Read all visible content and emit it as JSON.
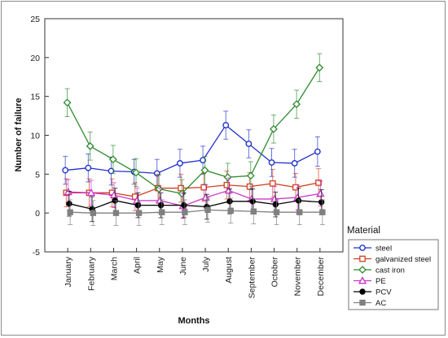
{
  "chart_data": {
    "type": "line",
    "xlabel": "Months",
    "ylabel": "Number of failure",
    "ylim": [
      -5,
      25
    ],
    "yticks": [
      -5,
      0,
      5,
      10,
      15,
      20,
      25
    ],
    "categories": [
      "January",
      "February",
      "March",
      "April",
      "May",
      "June",
      "July",
      "August",
      "September",
      "October",
      "November",
      "December"
    ],
    "grid": false,
    "error_bars": true,
    "legend": {
      "title": "Material",
      "placement": "right"
    },
    "series": [
      {
        "name": "steel",
        "color": "#2233cc",
        "marker": "circle",
        "values": [
          5.5,
          5.8,
          5.4,
          5.3,
          5.1,
          6.4,
          6.8,
          11.3,
          8.9,
          6.5,
          6.4,
          7.9
        ],
        "errors": [
          1.8,
          1.8,
          1.8,
          1.6,
          1.8,
          1.8,
          1.8,
          1.8,
          1.8,
          1.8,
          1.8,
          1.9
        ]
      },
      {
        "name": "galvanized steel",
        "color": "#d04020",
        "marker": "square",
        "values": [
          2.6,
          2.6,
          2.6,
          2.1,
          3.2,
          3.2,
          3.3,
          3.6,
          3.4,
          3.8,
          3.3,
          3.9
        ],
        "errors": [
          1.8,
          1.8,
          1.8,
          1.8,
          1.8,
          1.8,
          1.8,
          1.8,
          1.8,
          1.8,
          1.8,
          1.8
        ]
      },
      {
        "name": "cast iron",
        "color": "#2e8b2e",
        "marker": "diamond",
        "values": [
          14.2,
          8.6,
          6.9,
          5.2,
          3.1,
          2.5,
          5.5,
          4.6,
          4.8,
          10.8,
          14.0,
          18.7
        ],
        "errors": [
          1.8,
          1.8,
          1.8,
          1.8,
          1.8,
          1.8,
          1.8,
          1.8,
          1.8,
          1.8,
          1.8,
          1.8
        ]
      },
      {
        "name": "PE",
        "color": "#cc33cc",
        "marker": "triangle",
        "values": [
          2.7,
          2.6,
          2.3,
          1.6,
          1.6,
          0.9,
          2.0,
          2.9,
          1.8,
          1.8,
          2.0,
          2.5
        ],
        "errors": [
          1.6,
          1.6,
          1.6,
          1.6,
          1.6,
          1.6,
          1.6,
          1.6,
          1.6,
          1.6,
          1.6,
          1.6
        ]
      },
      {
        "name": "PCV",
        "color": "#000000",
        "marker": "circle-filled",
        "values": [
          1.2,
          0.5,
          1.6,
          1.0,
          1.0,
          1.0,
          0.8,
          1.5,
          1.5,
          1.1,
          1.6,
          1.4
        ],
        "errors": [
          1.6,
          1.6,
          1.6,
          1.6,
          1.6,
          1.6,
          1.6,
          1.6,
          1.6,
          1.6,
          1.6,
          1.6
        ]
      },
      {
        "name": "AC",
        "color": "#808080",
        "marker": "square-filled",
        "values": [
          0.1,
          0.0,
          0.0,
          0.0,
          0.1,
          0.1,
          0.4,
          0.3,
          0.2,
          0.1,
          0.1,
          0.1
        ],
        "errors": [
          1.6,
          1.6,
          1.6,
          1.6,
          1.6,
          1.6,
          1.6,
          1.6,
          1.6,
          1.6,
          1.6,
          1.6
        ]
      }
    ]
  }
}
